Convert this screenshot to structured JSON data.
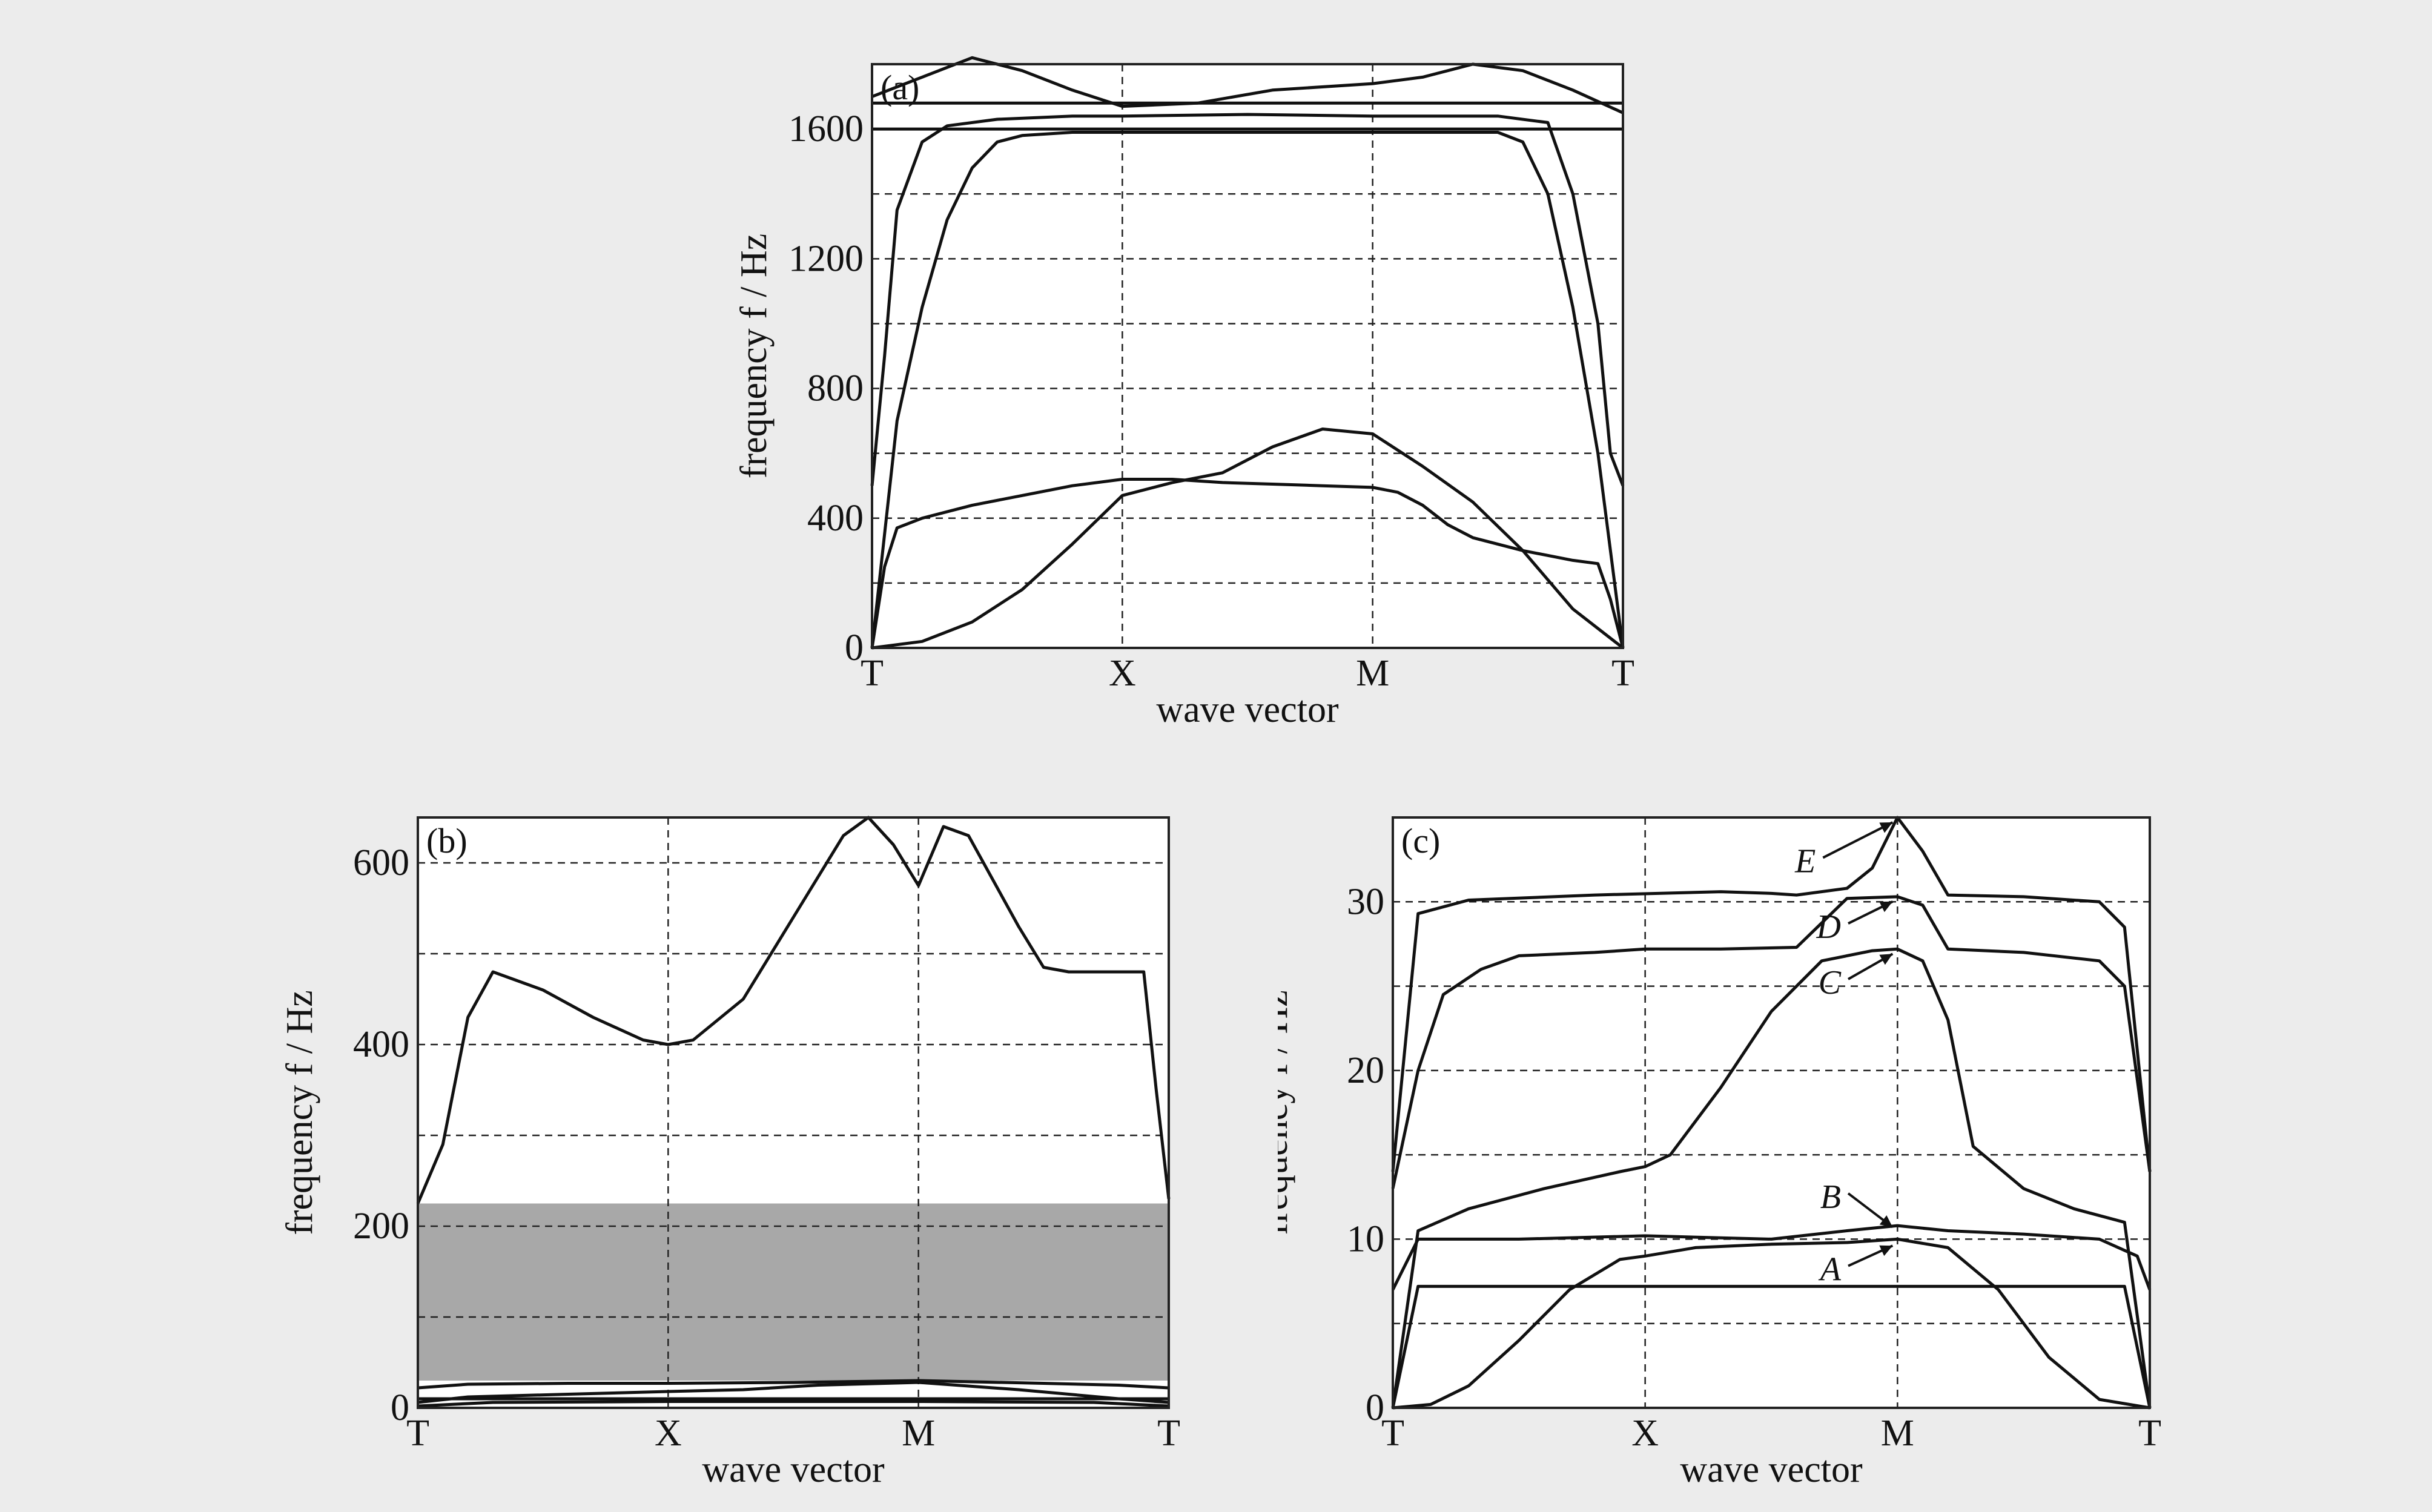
{
  "chart_data": [
    {
      "type": "line",
      "panel_label": "(a)",
      "xlabel": "wave vector",
      "ylabel": "frequency f / Hz",
      "x_ticks": [
        "T",
        "X",
        "M",
        "T"
      ],
      "xlim": [
        0,
        3
      ],
      "ylim": [
        0,
        1800
      ],
      "y_ticks": [
        0,
        400,
        800,
        1200,
        1600
      ],
      "y_tick_labels": [
        "0",
        "400",
        "800",
        "1200",
        "1600"
      ],
      "y_grid": [
        200,
        400,
        600,
        800,
        1000,
        1200,
        1400,
        1600
      ],
      "grid": true,
      "series": [
        {
          "x": [
            0,
            0.2,
            0.4,
            0.6,
            0.8,
            1.0,
            1.2,
            1.4,
            1.6,
            1.8,
            2.0,
            2.2,
            2.4,
            2.6,
            2.8,
            3.0
          ],
          "y": [
            0,
            20,
            80,
            180,
            320,
            470,
            510,
            540,
            620,
            675,
            660,
            560,
            450,
            300,
            120,
            0
          ]
        },
        {
          "x": [
            0,
            0.05,
            0.1,
            0.2,
            0.4,
            0.6,
            0.8,
            1.0,
            1.2,
            1.4,
            1.6,
            1.8,
            2.0,
            2.1,
            2.2,
            2.3,
            2.4,
            2.6,
            2.8,
            2.9,
            2.95,
            3.0
          ],
          "y": [
            0,
            250,
            370,
            400,
            440,
            470,
            500,
            520,
            520,
            510,
            505,
            500,
            495,
            480,
            440,
            380,
            340,
            300,
            270,
            260,
            150,
            0
          ]
        },
        {
          "x": [
            0,
            0.1,
            0.2,
            0.3,
            0.4,
            0.5,
            0.6,
            0.8,
            1.0,
            1.5,
            2.0,
            2.5,
            2.6,
            2.7,
            2.8,
            2.9,
            3.0
          ],
          "y": [
            0,
            700,
            1050,
            1320,
            1480,
            1560,
            1580,
            1590,
            1590,
            1590,
            1590,
            1590,
            1560,
            1400,
            1050,
            600,
            0
          ]
        },
        {
          "x": [
            0,
            0.05,
            0.1,
            0.2,
            0.3,
            0.5,
            0.8,
            1.0,
            1.5,
            2.0,
            2.5,
            2.7,
            2.8,
            2.9,
            2.95,
            3.0
          ],
          "y": [
            500,
            900,
            1350,
            1560,
            1610,
            1630,
            1640,
            1640,
            1645,
            1640,
            1640,
            1620,
            1400,
            1000,
            600,
            500
          ]
        },
        {
          "x": [
            0,
            3
          ],
          "y": [
            1600,
            1600
          ]
        },
        {
          "x": [
            0,
            3
          ],
          "y": [
            1680,
            1680
          ]
        },
        {
          "x": [
            0,
            0.2,
            0.4,
            0.6,
            0.8,
            1.0,
            1.3,
            1.6,
            2.0,
            2.2,
            2.4,
            2.6,
            2.8,
            3.0
          ],
          "y": [
            1700,
            1760,
            1820,
            1780,
            1720,
            1670,
            1680,
            1720,
            1740,
            1760,
            1800,
            1780,
            1720,
            1650
          ]
        }
      ]
    },
    {
      "type": "line",
      "panel_label": "(b)",
      "xlabel": "wave vector",
      "ylabel": "frequency f / Hz",
      "x_ticks": [
        "T",
        "X",
        "M",
        "T"
      ],
      "xlim": [
        0,
        3
      ],
      "ylim": [
        0,
        650
      ],
      "y_ticks": [
        0,
        200,
        400,
        600
      ],
      "y_tick_labels": [
        "0",
        "200",
        "400",
        "600"
      ],
      "y_grid": [
        100,
        200,
        300,
        400,
        500,
        600
      ],
      "grid": true,
      "band_gap": [
        30,
        225
      ],
      "series": [
        {
          "x": [
            0,
            0.1,
            0.2,
            0.3,
            0.5,
            0.7,
            0.9,
            1.0,
            1.1,
            1.3,
            1.5,
            1.7,
            1.8,
            1.9,
            2.0,
            2.1,
            2.2,
            2.4,
            2.5,
            2.6,
            2.8,
            2.9,
            2.95,
            3.0
          ],
          "y": [
            225,
            290,
            430,
            480,
            460,
            430,
            405,
            400,
            405,
            450,
            540,
            630,
            650,
            620,
            575,
            640,
            630,
            530,
            485,
            480,
            480,
            480,
            350,
            230
          ]
        },
        {
          "x": [
            0,
            0.2,
            0.6,
            1.0,
            1.5,
            2.0,
            2.5,
            2.8,
            3.0
          ],
          "y": [
            22,
            26,
            27,
            27,
            28,
            30,
            27,
            25,
            22
          ]
        },
        {
          "x": [
            0,
            0.2,
            0.6,
            1.0,
            1.3,
            1.6,
            2.0,
            2.4,
            2.8,
            3.0
          ],
          "y": [
            6,
            12,
            15,
            18,
            20,
            25,
            28,
            20,
            10,
            6
          ]
        },
        {
          "x": [
            0,
            0.3,
            1.0,
            2.0,
            2.7,
            3.0
          ],
          "y": [
            2,
            6,
            7,
            7,
            6,
            2
          ]
        },
        {
          "x": [
            0,
            3
          ],
          "y": [
            10,
            10
          ]
        }
      ]
    },
    {
      "type": "line",
      "panel_label": "(c)",
      "xlabel": "wave vector",
      "ylabel": "frequency f / Hz",
      "x_ticks": [
        "T",
        "X",
        "M",
        "T"
      ],
      "xlim": [
        0,
        3
      ],
      "ylim": [
        0,
        35
      ],
      "y_ticks": [
        0,
        10,
        20,
        30
      ],
      "y_tick_labels": [
        "0",
        "10",
        "20",
        "30"
      ],
      "y_grid": [
        5,
        10,
        15,
        20,
        25,
        30
      ],
      "grid": true,
      "annotations": [
        {
          "text": "A",
          "x": 1.8,
          "y": 8.2,
          "target_x": 2.0,
          "target_y": 9.9
        },
        {
          "text": "B",
          "x": 1.8,
          "y": 12.5,
          "target_x": 2.0,
          "target_y": 11.0
        },
        {
          "text": "C",
          "x": 1.8,
          "y": 25.2,
          "target_x": 2.0,
          "target_y": 27.2
        },
        {
          "text": "D",
          "x": 1.8,
          "y": 28.5,
          "target_x": 2.0,
          "target_y": 30.3
        },
        {
          "text": "E",
          "x": 1.7,
          "y": 32.4,
          "target_x": 2.0,
          "target_y": 35.0
        }
      ],
      "series": [
        {
          "x": [
            0,
            0.15,
            0.3,
            0.5,
            0.7,
            0.9,
            1.0,
            1.2,
            1.5,
            1.8,
            2.0,
            2.2,
            2.4,
            2.6,
            2.8,
            3.0
          ],
          "y": [
            0,
            0.2,
            1.3,
            4.0,
            7.0,
            8.8,
            9.0,
            9.5,
            9.7,
            9.8,
            10.0,
            9.5,
            7.0,
            3.0,
            0.5,
            0
          ]
        },
        {
          "x": [
            0,
            0.1,
            0.5,
            1.0,
            1.5,
            1.8,
            2.0,
            2.2,
            2.5,
            2.8,
            2.95,
            3.0
          ],
          "y": [
            7,
            10,
            10,
            10.2,
            10,
            10.5,
            10.8,
            10.5,
            10.3,
            10,
            9.0,
            7
          ]
        },
        {
          "x": [
            0,
            0.1,
            2.9,
            3.0
          ],
          "y": [
            0,
            7.2,
            7.2,
            0
          ]
        },
        {
          "x": [
            0,
            0.1,
            0.3,
            0.6,
            0.9,
            1.0,
            1.1,
            1.3,
            1.5,
            1.7,
            1.9,
            2.0,
            2.1,
            2.2,
            2.3,
            2.5,
            2.7,
            2.9,
            3.0
          ],
          "y": [
            0,
            10.5,
            11.8,
            13.0,
            14.0,
            14.3,
            15.0,
            19.0,
            23.5,
            26.5,
            27.1,
            27.2,
            26.5,
            23.0,
            15.5,
            13.0,
            11.8,
            11.0,
            0
          ]
        },
        {
          "x": [
            0,
            0.1,
            0.2,
            0.35,
            0.5,
            0.8,
            1.0,
            1.3,
            1.6,
            1.8,
            2.0,
            2.1,
            2.2,
            2.5,
            2.8,
            2.9,
            3.0
          ],
          "y": [
            13,
            20,
            24.5,
            26.0,
            26.8,
            27.0,
            27.2,
            27.2,
            27.3,
            30.2,
            30.3,
            29.8,
            27.2,
            27.0,
            26.5,
            25.0,
            14
          ]
        },
        {
          "x": [
            0,
            0.1,
            0.3,
            0.8,
            1.3,
            1.5,
            1.6,
            1.8,
            1.9,
            2.0,
            2.1,
            2.2,
            2.5,
            2.8,
            2.9,
            3.0
          ],
          "y": [
            14,
            29.3,
            30.1,
            30.4,
            30.6,
            30.5,
            30.4,
            30.8,
            32.0,
            35.0,
            33.0,
            30.4,
            30.3,
            30.0,
            28.5,
            14
          ]
        }
      ]
    }
  ]
}
